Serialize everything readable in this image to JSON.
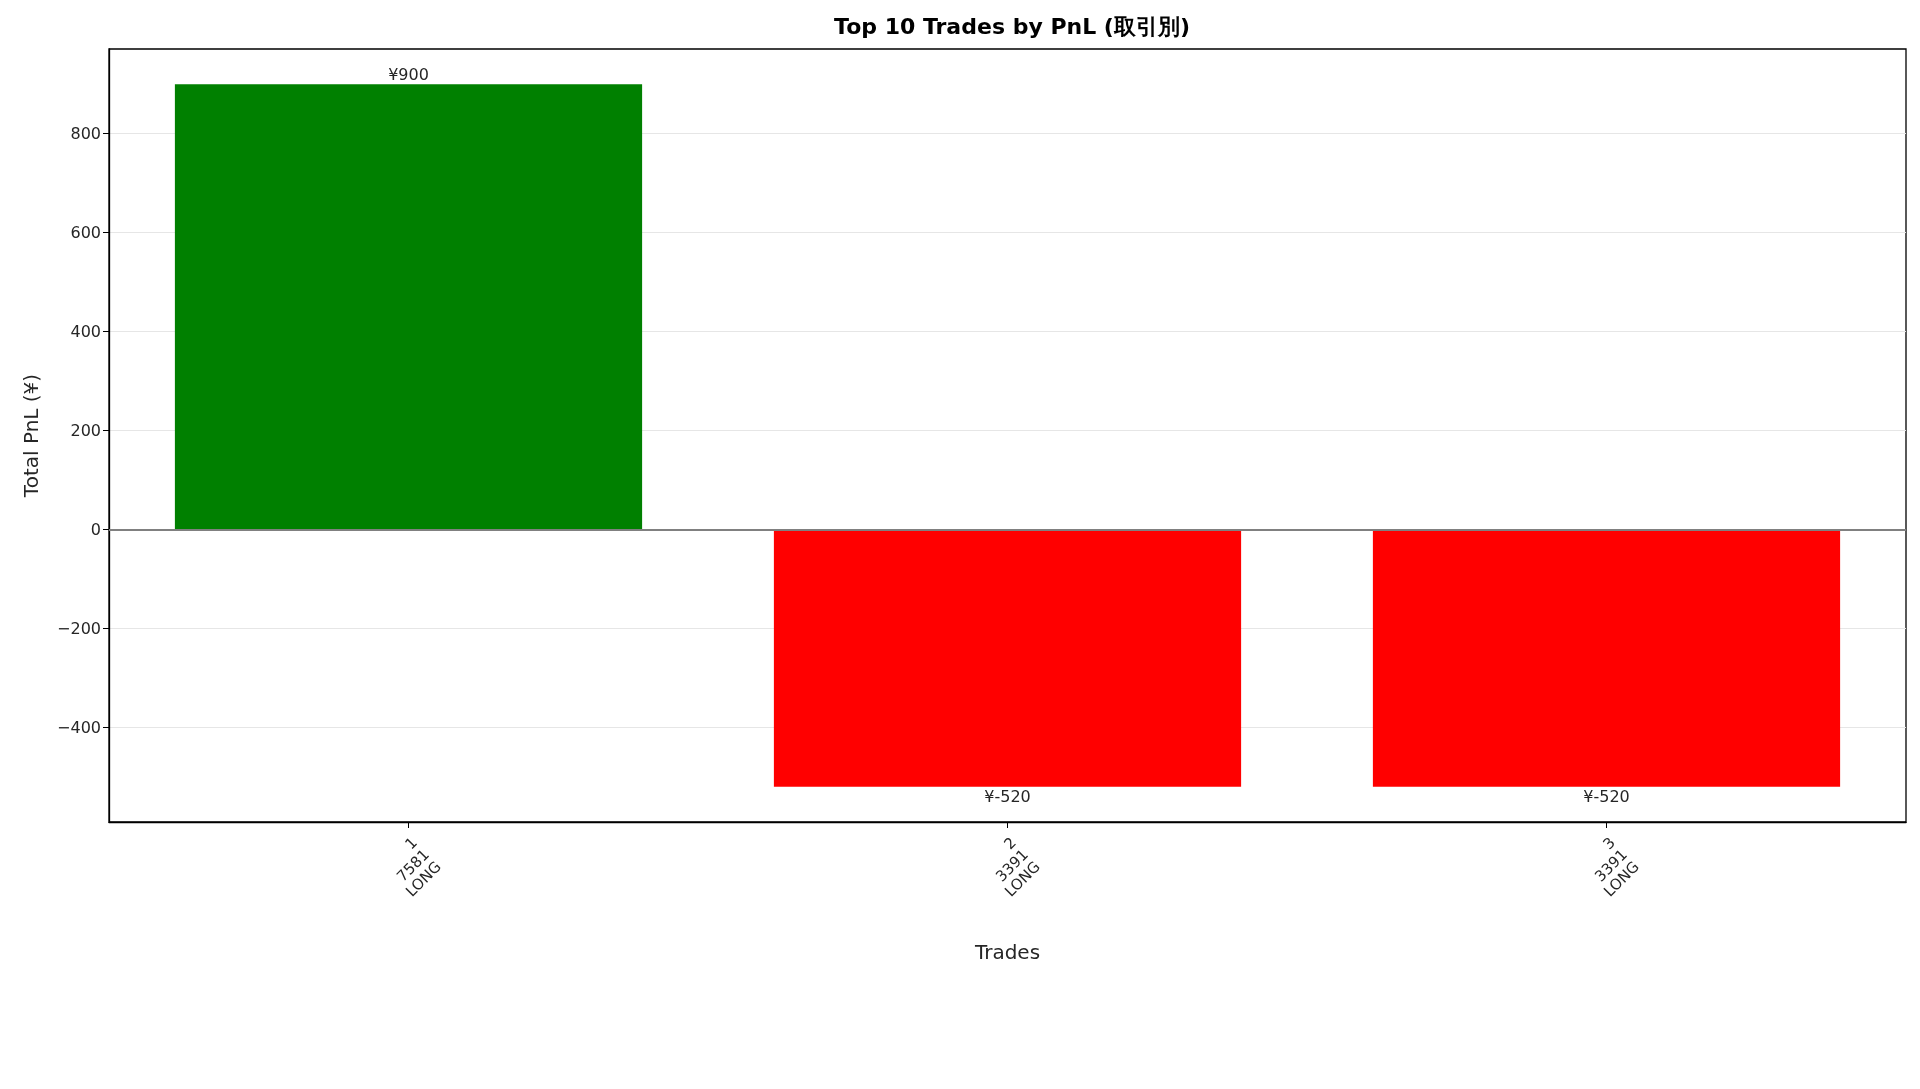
{
  "chart_data": {
    "type": "bar",
    "title": "Top 10 Trades by PnL (取引別)",
    "xlabel": "Trades",
    "ylabel": "Total PnL (¥)",
    "categories": [
      "1\n7581\nLONG",
      "2\n3391\nLONG",
      "3\n3391\nLONG"
    ],
    "values": [
      900,
      -520,
      -520
    ],
    "colors": [
      "#008000",
      "#ff0000",
      "#ff0000"
    ],
    "value_labels": [
      "¥900",
      "¥-520",
      "¥-520"
    ],
    "ylim": [
      -591,
      971
    ],
    "yticks": [
      {
        "value": -400,
        "label": "−400"
      },
      {
        "value": -200,
        "label": "−200"
      },
      0,
      200,
      400,
      600,
      800
    ],
    "grid": "y",
    "ref_lines": [
      {
        "axis": "y",
        "value": 0,
        "color": "#808080"
      }
    ]
  }
}
